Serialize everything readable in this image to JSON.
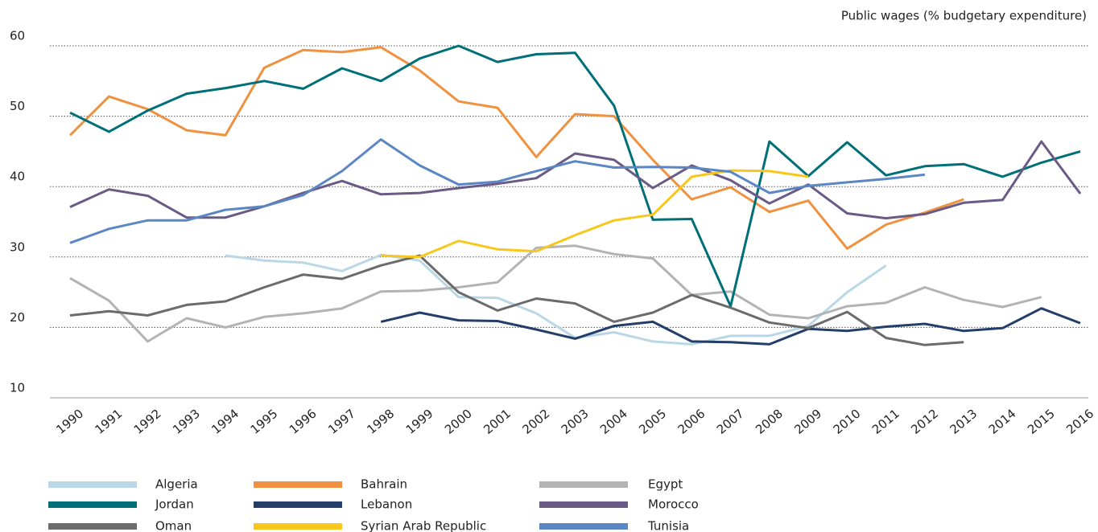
{
  "chart_data": {
    "type": "line",
    "y_axis_label": "Public wages (% budgetary expenditure)",
    "categories": [
      "1990",
      "1991",
      "1992",
      "1993",
      "1994",
      "1995",
      "1996",
      "1997",
      "1998",
      "1999",
      "2000",
      "2001",
      "2002",
      "2003",
      "2004",
      "2005",
      "2006",
      "2007",
      "2008",
      "2009",
      "2010",
      "2011",
      "2012",
      "2013",
      "2014",
      "2015",
      "2016"
    ],
    "ylim": [
      10,
      60
    ],
    "yticks": [
      10,
      20,
      30,
      40,
      50,
      60
    ],
    "grid": true,
    "series": [
      {
        "name": "Algeria",
        "color": "#b9d7e6",
        "values": [
          null,
          null,
          null,
          null,
          30.2,
          29.5,
          29.2,
          28,
          30.3,
          29.5,
          24.3,
          24.2,
          22,
          18.5,
          19.3,
          18,
          17.6,
          18.8,
          18.8,
          20.2,
          25,
          28.8,
          null,
          null,
          null,
          null,
          null
        ]
      },
      {
        "name": "Bahrain",
        "color": "#f0913f",
        "values": [
          47.3,
          52.8,
          51,
          48,
          47.3,
          56.9,
          59.4,
          59.1,
          59.8,
          56.5,
          52.1,
          51.2,
          44.2,
          50.3,
          50,
          43.8,
          38.2,
          39.9,
          36.4,
          38,
          31.2,
          34.6,
          36.3,
          38.2,
          null,
          null,
          null
        ]
      },
      {
        "name": "Egypt",
        "color": "#b3b3b3",
        "values": [
          27,
          23.8,
          18,
          21.3,
          20,
          21.5,
          22,
          22.7,
          25.1,
          25.2,
          25.7,
          26.4,
          31.3,
          31.6,
          30.4,
          29.8,
          24.6,
          25.1,
          21.8,
          21.3,
          23,
          23.5,
          25.7,
          23.9,
          22.9,
          24.3,
          null
        ]
      },
      {
        "name": "Jordan",
        "color": "#007078",
        "values": [
          50.5,
          47.8,
          50.8,
          53.2,
          54,
          55,
          53.9,
          56.8,
          55,
          58.2,
          60,
          57.7,
          58.8,
          59,
          51.5,
          35.3,
          35.4,
          23,
          46.4,
          41.5,
          46.3,
          41.6,
          42.9,
          43.2,
          41.4,
          43.4,
          45
        ]
      },
      {
        "name": "Lebanon",
        "color": "#243e6a",
        "values": [
          null,
          null,
          null,
          null,
          null,
          null,
          null,
          null,
          20.8,
          22.1,
          21,
          20.9,
          19.7,
          18.4,
          20.2,
          20.8,
          18,
          17.9,
          17.6,
          19.8,
          19.5,
          20.1,
          20.5,
          19.5,
          19.9,
          22.7,
          20.6
        ]
      },
      {
        "name": "Morocco",
        "color": "#6a5a86",
        "values": [
          37.1,
          39.6,
          38.7,
          35.6,
          35.6,
          37.2,
          39.1,
          40.8,
          38.9,
          39.1,
          39.8,
          40.4,
          41.2,
          44.7,
          43.8,
          39.8,
          43,
          40.9,
          37.6,
          40.3,
          36.2,
          35.5,
          36.1,
          37.7,
          38.1,
          46.4,
          39
        ]
      },
      {
        "name": "Oman",
        "color": "#6b6b6b",
        "values": [
          21.7,
          22.3,
          21.7,
          23.2,
          23.7,
          25.7,
          27.5,
          26.9,
          28.8,
          30.2,
          25,
          22.4,
          24.1,
          23.4,
          20.8,
          22.1,
          24.6,
          22.8,
          20.7,
          19.9,
          22.2,
          18.5,
          17.5,
          17.9,
          null,
          null,
          null
        ]
      },
      {
        "name": "Syrian Arab Republic",
        "color": "#f7c81b",
        "values": [
          null,
          null,
          null,
          null,
          null,
          null,
          null,
          null,
          30.2,
          30,
          32.3,
          31.1,
          30.8,
          33.1,
          35.2,
          36,
          41.4,
          42.3,
          42.2,
          41.4,
          null,
          null,
          null,
          null,
          null,
          null,
          null
        ]
      },
      {
        "name": "Tunisia",
        "color": "#5b86c4",
        "values": [
          32,
          34,
          35.2,
          35.2,
          36.7,
          37.2,
          38.8,
          42.2,
          46.7,
          43,
          40.3,
          40.7,
          42.2,
          43.6,
          42.7,
          42.8,
          42.7,
          42.1,
          39.1,
          40.1,
          40.6,
          41.1,
          41.7,
          null,
          null,
          null,
          null
        ]
      }
    ]
  }
}
